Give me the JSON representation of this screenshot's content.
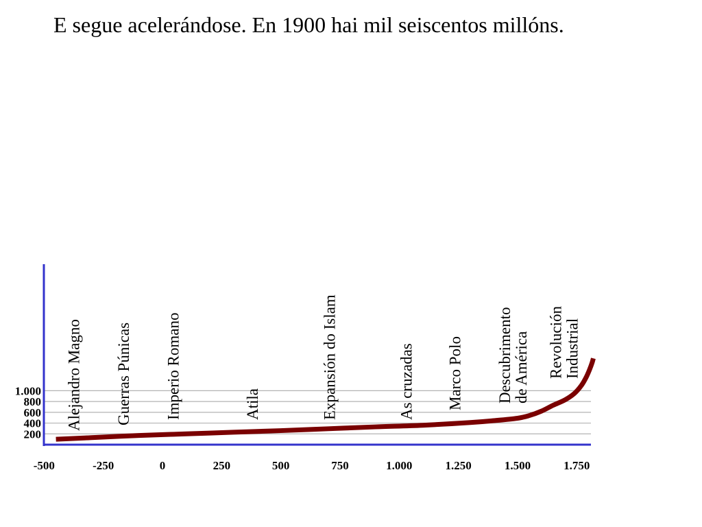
{
  "slide": {
    "title": "E segue acelerándose. En 1900 hai mil seiscentos millóns."
  },
  "chart_data": {
    "type": "line",
    "title": "",
    "xlabel": "",
    "ylabel": "",
    "xlim": [
      -500,
      1820
    ],
    "ylim": [
      0,
      1600
    ],
    "grid": true,
    "x_ticks": [
      -500,
      -250,
      0,
      250,
      500,
      750,
      1000,
      1250,
      1500,
      1750
    ],
    "x_tick_labels": [
      "-500",
      "-250",
      "0",
      "250",
      "500",
      "750",
      "1.000",
      "1.250",
      "1.500",
      "1.750"
    ],
    "y_ticks": [
      200,
      400,
      600,
      800,
      1000
    ],
    "y_tick_labels": [
      "200",
      "400",
      "600",
      "800",
      "1.000"
    ],
    "series": [
      {
        "x": [
          -450,
          -300,
          -100,
          100,
          300,
          500,
          700,
          900,
          1100,
          1300,
          1400,
          1500,
          1550,
          1600,
          1650,
          1700,
          1740,
          1770,
          1790,
          1805,
          1815,
          1820
        ],
        "y": [
          100,
          130,
          170,
          200,
          230,
          260,
          295,
          330,
          360,
          410,
          445,
          490,
          540,
          620,
          730,
          830,
          950,
          1100,
          1250,
          1400,
          1520,
          1600
        ]
      }
    ],
    "annotations": [
      {
        "x": -375,
        "lines": [
          "Alejandro Magno"
        ]
      },
      {
        "x": -165,
        "lines": [
          "Guerras Púnicas"
        ]
      },
      {
        "x": 45,
        "lines": [
          "Imperio Romano"
        ]
      },
      {
        "x": 380,
        "lines": [
          "Atila"
        ]
      },
      {
        "x": 705,
        "lines": [
          "Expansión do Islam"
        ]
      },
      {
        "x": 1030,
        "lines": [
          "As cruzadas"
        ]
      },
      {
        "x": 1235,
        "lines": [
          "Marco Polo"
        ]
      },
      {
        "x": 1480,
        "lines": [
          "Descubrimento",
          "de América"
        ]
      },
      {
        "x": 1695,
        "lines": [
          "Revolución",
          "Industrial"
        ]
      }
    ],
    "colors": {
      "axis": "#3333cc",
      "line": "#7a0000",
      "grid": "#b3b3b3"
    }
  }
}
